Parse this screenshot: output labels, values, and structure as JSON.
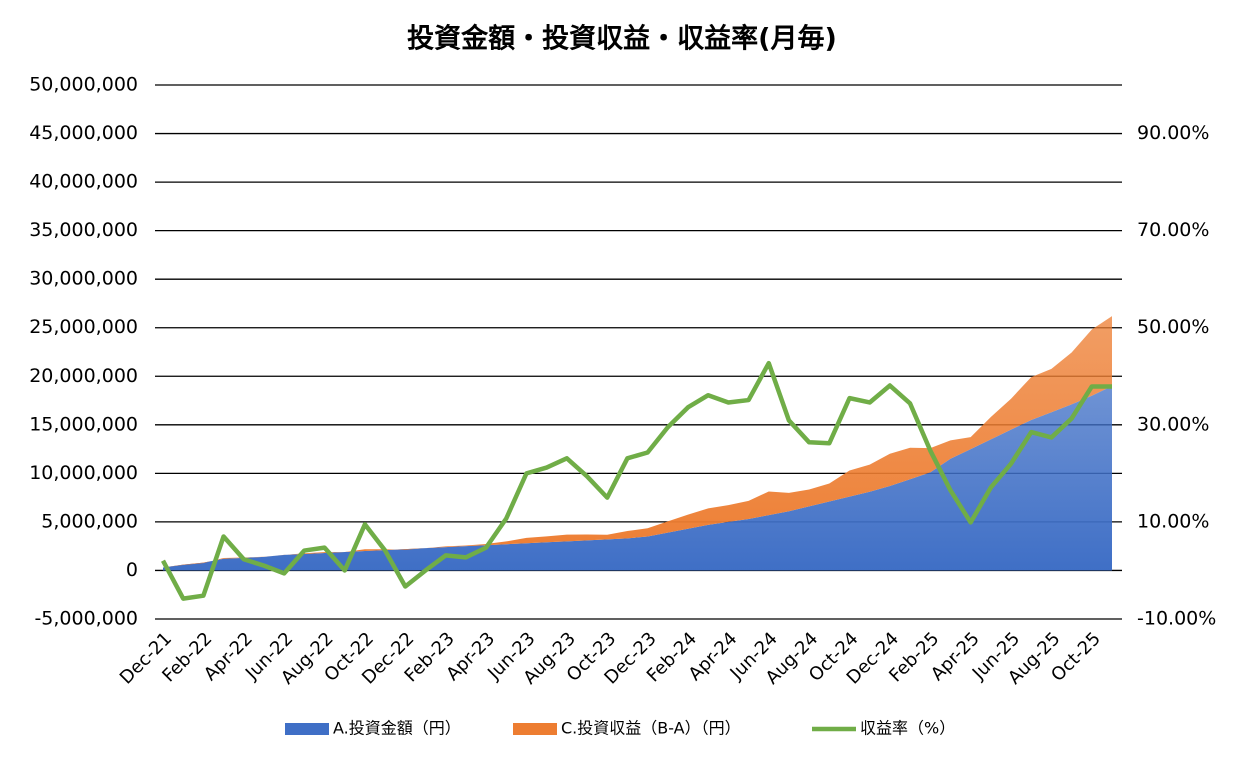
{
  "chart_data": {
    "type": "stacked-area-line",
    "title": "投資金額・投資収益・収益率(月毎)",
    "categories": [
      "Dec-21",
      null,
      "Feb-22",
      null,
      "Apr-22",
      null,
      "Jun-22",
      null,
      "Aug-22",
      null,
      "Oct-22",
      null,
      "Dec-22",
      null,
      "Feb-23",
      null,
      "Apr-23",
      null,
      "Jun-23",
      null,
      "Aug-23",
      null,
      "Oct-23",
      null,
      "Dec-23",
      null,
      "Feb-24",
      null,
      "Apr-24",
      null,
      "Jun-24",
      null,
      "Aug-24",
      null,
      "Oct-24",
      null,
      "Dec-24",
      null,
      "Feb-25",
      null,
      "Apr-25",
      null,
      "Jun-25",
      null,
      "Aug-25",
      null,
      "Oct-25",
      null
    ],
    "series": [
      {
        "name": "A.投資金額（円）",
        "color": "#3f6fc6",
        "kind": "area",
        "values": [
          300000,
          600000,
          800000,
          1200000,
          1300000,
          1400000,
          1600000,
          1700000,
          1800000,
          1900000,
          2000000,
          2100000,
          2200000,
          2300000,
          2400000,
          2500000,
          2600000,
          2700000,
          2800000,
          2900000,
          3000000,
          3100000,
          3200000,
          3300000,
          3500000,
          3900000,
          4300000,
          4700000,
          5000000,
          5300000,
          5700000,
          6100000,
          6600000,
          7100000,
          7600000,
          8100000,
          8700000,
          9400000,
          10100000,
          11500000,
          12500000,
          13500000,
          14500000,
          15500000,
          16300000,
          17100000,
          18000000,
          19000000
        ]
      },
      {
        "name": "C.投資収益（B-A）（円）",
        "color": "#ed7d31",
        "kind": "area",
        "values": [
          6000,
          -35000,
          -42000,
          84000,
          30000,
          14000,
          -10000,
          70000,
          85000,
          0,
          190000,
          86000,
          -73000,
          0,
          74000,
          68000,
          122000,
          289000,
          560000,
          615000,
          693000,
          601000,
          480000,
          762000,
          851000,
          1151000,
          1445000,
          1697000,
          1730000,
          1860000,
          2434000,
          1885000,
          1742000,
          1860000,
          2698000,
          2803000,
          3315000,
          3234000,
          2495000,
          1898000,
          1238000,
          2309000,
          3190000,
          4418000,
          4466000,
          5352000,
          6822000,
          7201000
        ]
      },
      {
        "name": "収益率（%）",
        "color": "#70ad47",
        "kind": "line",
        "axis": "y2",
        "values": [
          2,
          -5.8,
          -5.2,
          7,
          2.3,
          1,
          -0.6,
          4.1,
          4.7,
          0,
          9.5,
          4.1,
          -3.3,
          0,
          3.1,
          2.7,
          4.7,
          10.7,
          20,
          21.2,
          23.1,
          19.4,
          15,
          23.1,
          24.3,
          29.5,
          33.6,
          36.1,
          34.6,
          35.1,
          42.7,
          30.9,
          26.4,
          26.2,
          35.5,
          34.6,
          38.1,
          34.4,
          24.7,
          16.5,
          9.9,
          17.1,
          22,
          28.5,
          27.4,
          31.3,
          37.9,
          37.9
        ]
      }
    ],
    "ylim": [
      -5000000,
      50000000
    ],
    "yticks": [
      {
        "value": -5000000,
        "label": "-5,000,000"
      },
      0,
      {
        "value": 5000000,
        "label": "5,000,000"
      },
      {
        "value": 10000000,
        "label": "10,000,000"
      },
      {
        "value": 15000000,
        "label": "15,000,000"
      },
      {
        "value": 20000000,
        "label": "20,000,000"
      },
      {
        "value": 25000000,
        "label": "25,000,000"
      },
      {
        "value": 30000000,
        "label": "30,000,000"
      },
      {
        "value": 35000000,
        "label": "35,000,000"
      },
      {
        "value": 40000000,
        "label": "40,000,000"
      },
      {
        "value": 45000000,
        "label": "45,000,000"
      },
      {
        "value": 50000000,
        "label": "50,000,000"
      }
    ],
    "y2lim": [
      -10,
      100
    ],
    "y2ticks": [
      {
        "value": -10,
        "label": "-10.00%"
      },
      {
        "value": 10,
        "label": "10.00%"
      },
      {
        "value": 30,
        "label": "30.00%"
      },
      {
        "value": 50,
        "label": "50.00%"
      },
      {
        "value": 70,
        "label": "70.00%"
      },
      {
        "value": 90,
        "label": "90.00%"
      }
    ],
    "grid": true,
    "legend": "bottom"
  }
}
